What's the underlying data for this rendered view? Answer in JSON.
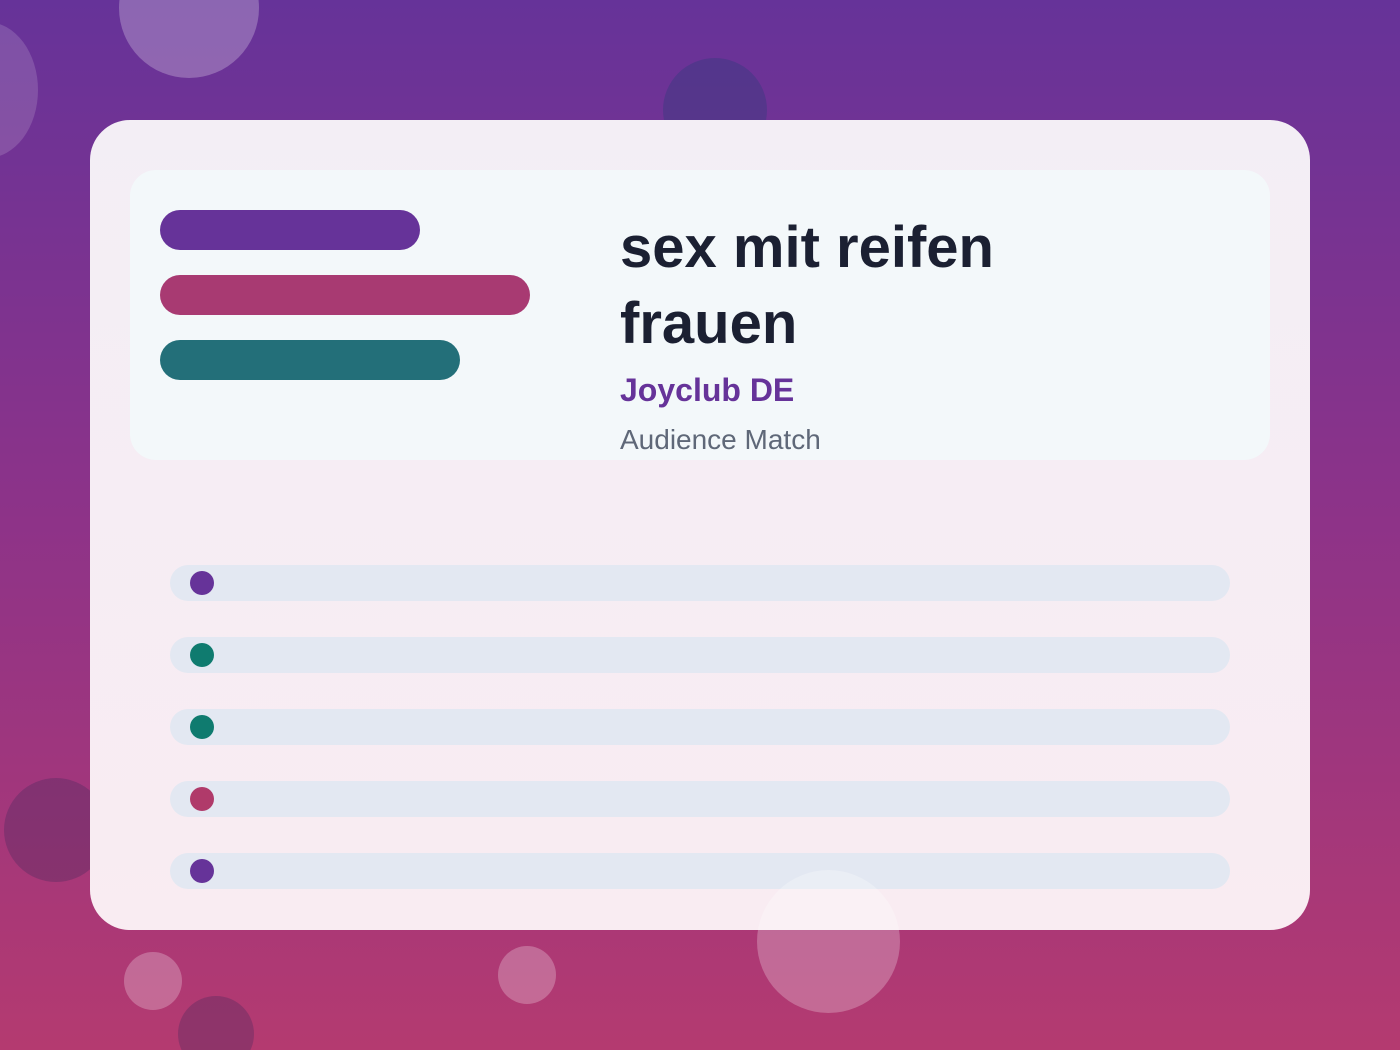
{
  "header": {
    "title": "sex mit reifen frauen",
    "brand": "Joyclub DE",
    "subtitle": "Audience Match"
  }
}
